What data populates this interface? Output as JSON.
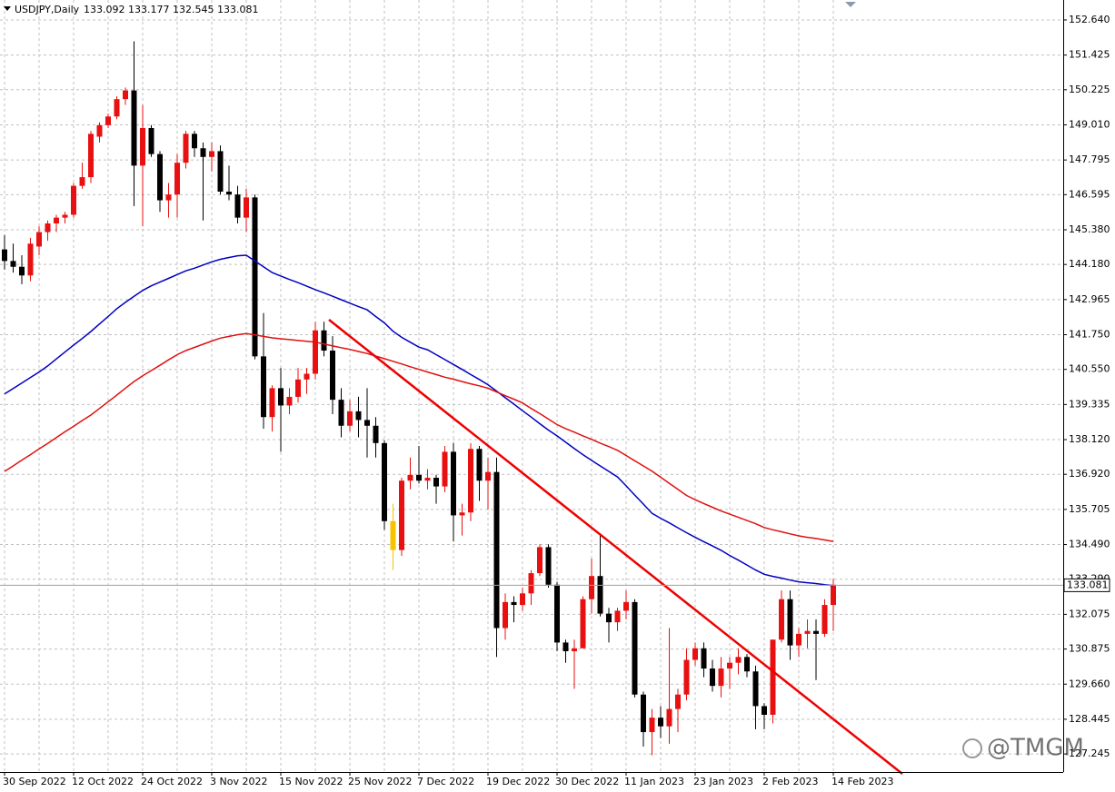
{
  "chart_data": {
    "type": "candlestick",
    "title": "USDJPY,Daily",
    "ohlc_readout": "133.092 133.177 132.545 133.081",
    "watermark": "@TMGM",
    "categories": [
      "30 Sep 2022",
      null,
      null,
      null,
      null,
      null,
      null,
      null,
      "12 Oct 2022",
      null,
      null,
      null,
      null,
      null,
      null,
      null,
      "24 Oct 2022",
      null,
      null,
      null,
      null,
      null,
      null,
      null,
      "3 Nov 2022",
      null,
      null,
      null,
      null,
      null,
      null,
      null,
      "15 Nov 2022",
      null,
      null,
      null,
      null,
      null,
      null,
      null,
      "25 Nov 2022",
      null,
      null,
      null,
      null,
      null,
      null,
      null,
      "7 Dec 2022",
      null,
      null,
      null,
      null,
      null,
      null,
      null,
      "19 Dec 2022",
      null,
      null,
      null,
      null,
      null,
      null,
      null,
      "30 Dec 2022",
      null,
      null,
      null,
      null,
      null,
      null,
      null,
      "11 Jan 2023",
      null,
      null,
      null,
      null,
      null,
      null,
      null,
      "23 Jan 2023",
      null,
      null,
      null,
      null,
      null,
      null,
      null,
      "2 Feb 2023",
      null,
      null,
      null,
      null,
      null,
      null,
      null,
      "14 Feb 2023"
    ],
    "open": [
      144.7,
      144.3,
      144.1,
      143.8,
      144.8,
      145.3,
      145.6,
      145.8,
      145.9,
      146.9,
      147.2,
      148.6,
      149.0,
      149.3,
      149.9,
      150.2,
      147.6,
      148.9,
      148.0,
      146.4,
      146.6,
      147.7,
      148.7,
      148.2,
      147.9,
      148.1,
      146.7,
      146.6,
      145.8,
      146.5,
      141.0,
      138.9,
      139.9,
      139.3,
      139.6,
      140.2,
      140.4,
      141.9,
      141.2,
      139.5,
      138.6,
      139.1,
      138.8,
      138.6,
      138.0,
      135.3,
      134.3,
      136.7,
      136.9,
      136.7,
      136.8,
      136.5,
      137.7,
      135.5,
      135.6,
      137.8,
      136.7,
      137.0,
      131.6,
      132.5,
      132.4,
      132.8,
      133.5,
      134.4,
      133.1,
      131.1,
      130.8,
      130.9,
      132.6,
      133.4,
      132.1,
      131.8,
      132.2,
      132.5,
      129.3,
      128.0,
      128.5,
      128.2,
      128.8,
      129.3,
      130.5,
      130.9,
      130.2,
      129.6,
      130.2,
      130.4,
      130.6,
      130.1,
      128.9,
      128.6,
      131.2,
      132.6,
      131.0,
      131.4,
      131.5,
      131.4,
      132.4
    ],
    "high": [
      145.2,
      144.9,
      144.5,
      145.1,
      145.5,
      145.7,
      145.9,
      146.0,
      147.0,
      147.7,
      148.8,
      149.1,
      149.4,
      150.0,
      150.3,
      151.9,
      149.7,
      149.0,
      148.1,
      147.0,
      148.0,
      148.8,
      148.8,
      148.4,
      148.4,
      148.3,
      147.6,
      146.9,
      146.8,
      146.6,
      142.5,
      140.0,
      140.6,
      139.9,
      140.6,
      140.6,
      142.2,
      142.2,
      141.7,
      139.9,
      139.5,
      139.6,
      139.9,
      138.9,
      138.1,
      135.9,
      136.8,
      137.5,
      137.9,
      137.1,
      136.9,
      137.9,
      138.0,
      135.9,
      138.0,
      137.9,
      137.5,
      137.5,
      132.8,
      132.7,
      133.0,
      133.6,
      134.5,
      134.5,
      133.2,
      131.2,
      131.2,
      132.7,
      134.0,
      134.8,
      132.3,
      132.3,
      132.9,
      132.6,
      129.4,
      128.8,
      128.9,
      131.6,
      129.5,
      130.9,
      131.1,
      131.1,
      130.5,
      130.6,
      130.6,
      130.9,
      130.7,
      130.3,
      129.0,
      131.2,
      132.9,
      132.9,
      131.6,
      131.9,
      131.9,
      132.6,
      133.3
    ],
    "low": [
      144.0,
      143.9,
      143.5,
      143.6,
      144.5,
      145.0,
      145.3,
      145.6,
      145.8,
      146.8,
      147.0,
      148.4,
      148.9,
      149.2,
      149.7,
      146.2,
      145.5,
      147.9,
      146.0,
      145.8,
      145.8,
      147.5,
      147.9,
      145.7,
      147.4,
      146.6,
      146.4,
      145.6,
      145.3,
      140.9,
      138.5,
      138.4,
      137.7,
      139.0,
      139.4,
      139.7,
      140.2,
      141.0,
      139.0,
      138.2,
      138.4,
      138.2,
      137.5,
      137.5,
      135.0,
      133.6,
      134.1,
      136.4,
      136.6,
      136.4,
      135.9,
      136.3,
      134.6,
      134.8,
      135.3,
      136.0,
      135.7,
      130.6,
      131.2,
      131.8,
      132.2,
      132.4,
      133.4,
      133.0,
      130.8,
      130.4,
      129.5,
      130.9,
      132.1,
      132.0,
      131.1,
      131.5,
      131.9,
      129.2,
      127.5,
      127.2,
      127.8,
      127.6,
      128.0,
      129.1,
      130.3,
      129.9,
      129.4,
      129.2,
      129.5,
      130.0,
      129.9,
      128.1,
      128.1,
      128.3,
      131.1,
      130.5,
      130.6,
      130.9,
      129.8,
      131.3,
      131.5
    ],
    "close": [
      144.3,
      144.1,
      143.8,
      144.9,
      145.3,
      145.6,
      145.8,
      145.9,
      146.9,
      147.2,
      148.7,
      149.0,
      149.3,
      149.9,
      150.2,
      147.6,
      148.9,
      148.0,
      146.4,
      146.6,
      147.7,
      148.7,
      148.2,
      147.9,
      148.1,
      146.7,
      146.6,
      145.8,
      146.5,
      141.0,
      138.9,
      139.9,
      139.3,
      139.6,
      140.2,
      140.4,
      141.9,
      141.2,
      139.5,
      138.6,
      139.1,
      138.8,
      138.6,
      138.0,
      135.3,
      134.3,
      136.7,
      136.9,
      136.7,
      136.8,
      136.5,
      137.7,
      135.5,
      135.6,
      137.8,
      136.7,
      137.0,
      131.6,
      132.5,
      132.4,
      132.8,
      133.5,
      134.4,
      133.1,
      131.1,
      130.8,
      130.9,
      132.6,
      133.4,
      132.1,
      131.8,
      132.2,
      132.5,
      129.3,
      128.0,
      128.5,
      128.2,
      128.8,
      129.3,
      130.5,
      130.9,
      130.2,
      129.6,
      130.2,
      130.4,
      130.6,
      130.1,
      128.9,
      128.6,
      131.2,
      132.6,
      131.0,
      131.4,
      131.5,
      131.4,
      132.4,
      133.1
    ],
    "up_color": "#e81010",
    "down_color": "#000000",
    "highlight_index": 45,
    "highlight_color": "#f5c400",
    "overlays": [
      {
        "color": "#0000c0",
        "values": [
          139.7,
          139.89,
          140.08,
          140.27,
          140.46,
          140.67,
          140.91,
          141.15,
          141.39,
          141.62,
          141.86,
          142.12,
          142.38,
          142.65,
          142.87,
          143.08,
          143.28,
          143.44,
          143.57,
          143.7,
          143.83,
          143.96,
          144.05,
          144.16,
          144.27,
          144.36,
          144.42,
          144.48,
          144.5,
          144.3,
          144.1,
          143.9,
          143.78,
          143.66,
          143.55,
          143.43,
          143.31,
          143.2,
          143.08,
          142.96,
          142.84,
          142.72,
          142.61,
          142.38,
          142.16,
          141.87,
          141.66,
          141.49,
          141.32,
          141.23,
          141.06,
          140.89,
          140.72,
          140.55,
          140.37,
          140.2,
          140.02,
          139.8,
          139.57,
          139.35,
          139.12,
          138.9,
          138.67,
          138.45,
          138.25,
          138.03,
          137.81,
          137.6,
          137.4,
          137.21,
          137.02,
          136.83,
          136.52,
          136.2,
          135.89,
          135.57,
          135.4,
          135.24,
          135.07,
          134.9,
          134.74,
          134.59,
          134.44,
          134.29,
          134.11,
          133.95,
          133.78,
          133.61,
          133.46,
          133.39,
          133.33,
          133.26,
          133.2,
          133.17,
          133.14,
          133.1,
          133.07
        ]
      },
      {
        "color": "#e01010",
        "values": [
          137.02,
          137.21,
          137.41,
          137.6,
          137.8,
          137.99,
          138.19,
          138.39,
          138.58,
          138.78,
          138.97,
          139.2,
          139.43,
          139.66,
          139.9,
          140.13,
          140.33,
          140.51,
          140.69,
          140.88,
          141.06,
          141.2,
          141.31,
          141.42,
          141.53,
          141.63,
          141.69,
          141.75,
          141.79,
          141.74,
          141.69,
          141.64,
          141.61,
          141.58,
          141.55,
          141.52,
          141.49,
          141.43,
          141.36,
          141.3,
          141.24,
          141.17,
          141.1,
          141.01,
          140.92,
          140.83,
          140.74,
          140.64,
          140.55,
          140.46,
          140.37,
          140.28,
          140.21,
          140.13,
          140.05,
          139.98,
          139.9,
          139.77,
          139.64,
          139.52,
          139.39,
          139.2,
          139.02,
          138.83,
          138.64,
          138.5,
          138.38,
          138.25,
          138.13,
          138.0,
          137.88,
          137.75,
          137.57,
          137.39,
          137.21,
          137.03,
          136.82,
          136.61,
          136.4,
          136.19,
          136.04,
          135.91,
          135.78,
          135.65,
          135.54,
          135.43,
          135.32,
          135.21,
          135.08,
          135.0,
          134.93,
          134.86,
          134.79,
          134.74,
          134.7,
          134.65,
          134.6
        ]
      }
    ],
    "last_price": {
      "value": 133.081,
      "label": "133.081"
    },
    "ylim": [
      126.62,
      153.33
    ],
    "yticks": [
      {
        "value": 152.64,
        "label": "152.640"
      },
      {
        "value": 151.425,
        "label": "151.425"
      },
      {
        "value": 150.225,
        "label": "150.225"
      },
      {
        "value": 149.01,
        "label": "149.010"
      },
      {
        "value": 147.795,
        "label": "147.795"
      },
      {
        "value": 146.595,
        "label": "146.595"
      },
      {
        "value": 145.38,
        "label": "145.380"
      },
      {
        "value": 144.18,
        "label": "144.180"
      },
      {
        "value": 142.965,
        "label": "142.965"
      },
      {
        "value": 141.75,
        "label": "141.750"
      },
      {
        "value": 140.55,
        "label": "140.550"
      },
      {
        "value": 139.335,
        "label": "139.335"
      },
      {
        "value": 138.12,
        "label": "138.120"
      },
      {
        "value": 136.92,
        "label": "136.920"
      },
      {
        "value": 135.705,
        "label": "135.705"
      },
      {
        "value": 134.49,
        "label": "134.490"
      },
      {
        "value": 133.29,
        "label": "133.290"
      },
      {
        "value": 132.075,
        "label": "132.075"
      },
      {
        "value": 130.875,
        "label": "130.875"
      },
      {
        "value": 129.66,
        "label": "129.660"
      },
      {
        "value": 128.445,
        "label": "128.445"
      },
      {
        "value": 127.245,
        "label": "127.245"
      }
    ],
    "grid": true
  }
}
